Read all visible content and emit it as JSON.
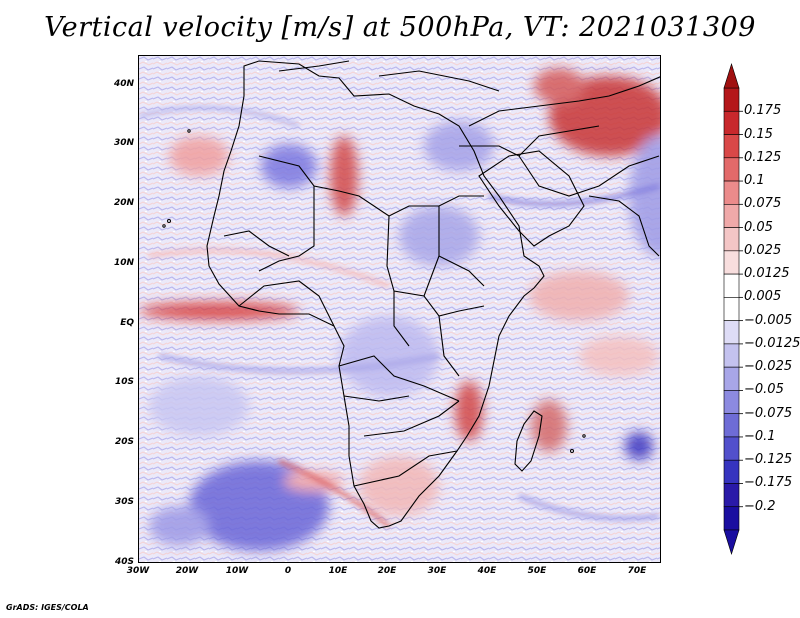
{
  "title": "Vertical velocity [m/s] at 500hPa, VT: 2021031309",
  "credit": "GrADS: IGES/COLA",
  "map": {
    "lat_labels": [
      "40N",
      "30N",
      "20N",
      "10N",
      "EQ",
      "10S",
      "20S",
      "30S",
      "40S"
    ],
    "lon_labels": [
      "30W",
      "20W",
      "10W",
      "0",
      "10E",
      "20E",
      "30E",
      "40E",
      "50E",
      "60E",
      "70E"
    ]
  },
  "colorbar": {
    "levels": [
      "0.175",
      "0.15",
      "0.125",
      "0.1",
      "0.075",
      "0.05",
      "0.025",
      "0.0125",
      "0.005",
      "−0.005",
      "−0.0125",
      "−0.025",
      "−0.05",
      "−0.075",
      "−0.1",
      "−0.125",
      "−0.175",
      "−0.2"
    ],
    "colors": [
      "#b4171a",
      "#c8282c",
      "#d94848",
      "#e36a6a",
      "#eb8b8b",
      "#f0a9a9",
      "#f4c6c6",
      "#f8dede",
      "#ffffff",
      "#ffffff",
      "#dedcf6",
      "#c4c2ef",
      "#a8a6e8",
      "#8c8ae0",
      "#6e6cd6",
      "#5250cc",
      "#3634bf",
      "#2a1aa8",
      "#1a0ea0"
    ],
    "top_arrow_color": "#a01010",
    "bottom_arrow_color": "#1a0ea0"
  }
}
